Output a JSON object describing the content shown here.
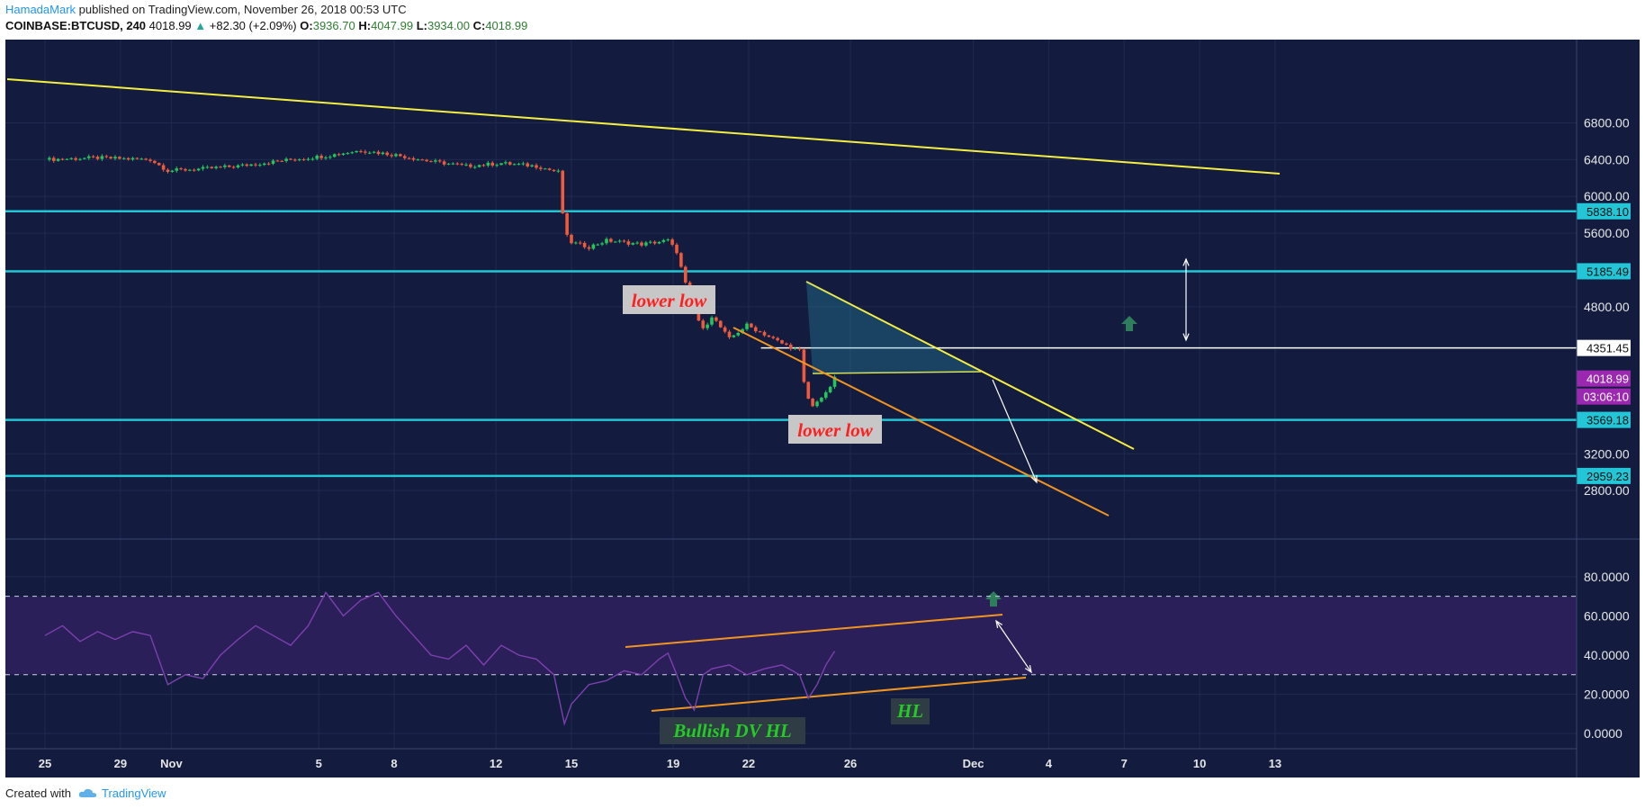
{
  "header": {
    "user": "HamadaMark",
    "published": "published on TradingView.com, November 26, 2018 00:53 UTC"
  },
  "ticker": {
    "symbol": "COINBASE:BTCUSD, 240",
    "last": "4018.99",
    "arrow": "▲",
    "change": "+82.30 (+2.09%)",
    "o_label": "O:",
    "o": "3936.70",
    "h_label": "H:",
    "h": "4047.99",
    "l_label": "L:",
    "l": "3934.00",
    "c_label": "C:",
    "c": "4018.99"
  },
  "footer": {
    "created_with": "Created with",
    "brand": "TradingView",
    "brand_icon": "cloud-logo-icon"
  },
  "colors": {
    "background": "#131c3f",
    "grid": "#1f2a52",
    "support": "#23c6d6",
    "trend_yellow": "#f5ef42",
    "trend_orange": "#f29420",
    "candle_up": "#22c55e",
    "candle_down": "#ef5a3c",
    "rsi_line": "#7e3fb0",
    "rsi_band": "#2a1f58",
    "price_badge": "#9c27b0",
    "annotation_red": "#ff1f1f",
    "annotation_green": "#22cc22"
  },
  "chart_data": [
    {
      "type": "candlestick",
      "symbol": "COINBASE:BTCUSD",
      "interval": "240",
      "x_ticks": [
        "25",
        "29",
        "Nov",
        "5",
        "8",
        "12",
        "15",
        "19",
        "22",
        "26",
        "Dec",
        "4",
        "7",
        "10",
        "13"
      ],
      "y_ticks": [
        "6800.00",
        "6400.00",
        "6000.00",
        "5600.00",
        "4800.00",
        "3200.00",
        "2800.00"
      ],
      "ylim": [
        2500,
        7300
      ],
      "horizontal_levels": [
        {
          "value": 5838.1,
          "label": "5838.10",
          "color": "support"
        },
        {
          "value": 5185.49,
          "label": "5185.49",
          "color": "support"
        },
        {
          "value": 4351.45,
          "label": "4351.45",
          "color": "white"
        },
        {
          "value": 3569.18,
          "label": "3569.18",
          "color": "support"
        },
        {
          "value": 2959.23,
          "label": "2959.23",
          "color": "support"
        }
      ],
      "last_price": {
        "value": 4018.99,
        "label": "4018.99",
        "countdown": "03:06:10"
      },
      "annotations": [
        "lower low",
        "lower low"
      ],
      "price_path": [
        {
          "d": 0,
          "p": 6400
        },
        {
          "d": 3,
          "p": 6420
        },
        {
          "d": 6,
          "p": 6400
        },
        {
          "d": 7,
          "p": 6280
        },
        {
          "d": 9,
          "p": 6300
        },
        {
          "d": 11,
          "p": 6330
        },
        {
          "d": 14,
          "p": 6400
        },
        {
          "d": 16,
          "p": 6440
        },
        {
          "d": 18,
          "p": 6500
        },
        {
          "d": 20,
          "p": 6450
        },
        {
          "d": 22,
          "p": 6380
        },
        {
          "d": 24,
          "p": 6330
        },
        {
          "d": 26,
          "p": 6360
        },
        {
          "d": 28,
          "p": 6330
        },
        {
          "d": 29.3,
          "p": 6260
        },
        {
          "d": 29.6,
          "p": 5600
        },
        {
          "d": 30,
          "p": 5500
        },
        {
          "d": 31,
          "p": 5450
        },
        {
          "d": 32,
          "p": 5520
        },
        {
          "d": 34,
          "p": 5480
        },
        {
          "d": 35.5,
          "p": 5520
        },
        {
          "d": 36,
          "p": 5400
        },
        {
          "d": 36.5,
          "p": 5050
        },
        {
          "d": 37,
          "p": 4750
        },
        {
          "d": 37.5,
          "p": 4550
        },
        {
          "d": 38,
          "p": 4700
        },
        {
          "d": 39,
          "p": 4450
        },
        {
          "d": 40,
          "p": 4600
        },
        {
          "d": 41,
          "p": 4500
        },
        {
          "d": 42,
          "p": 4400
        },
        {
          "d": 43,
          "p": 4320
        },
        {
          "d": 43.3,
          "p": 3900
        },
        {
          "d": 43.7,
          "p": 3700
        },
        {
          "d": 44,
          "p": 3780
        },
        {
          "d": 44.5,
          "p": 3850
        },
        {
          "d": 45,
          "p": 4019
        }
      ]
    },
    {
      "type": "line",
      "name": "RSI",
      "y_ticks": [
        "80.0000",
        "60.0000",
        "40.0000",
        "20.0000",
        "0.0000"
      ],
      "ylim": [
        -10,
        90
      ],
      "bands": [
        30,
        70
      ],
      "annotations": [
        "Bullish DV HL",
        "HL"
      ],
      "values": [
        {
          "d": 0,
          "v": 50
        },
        {
          "d": 1,
          "v": 55
        },
        {
          "d": 2,
          "v": 47
        },
        {
          "d": 3,
          "v": 52
        },
        {
          "d": 4,
          "v": 48
        },
        {
          "d": 5,
          "v": 52
        },
        {
          "d": 6,
          "v": 50
        },
        {
          "d": 7,
          "v": 25
        },
        {
          "d": 8,
          "v": 30
        },
        {
          "d": 9,
          "v": 28
        },
        {
          "d": 10,
          "v": 40
        },
        {
          "d": 11,
          "v": 48
        },
        {
          "d": 12,
          "v": 55
        },
        {
          "d": 13,
          "v": 50
        },
        {
          "d": 14,
          "v": 45
        },
        {
          "d": 15,
          "v": 55
        },
        {
          "d": 16,
          "v": 72
        },
        {
          "d": 17,
          "v": 60
        },
        {
          "d": 18,
          "v": 68
        },
        {
          "d": 19,
          "v": 72
        },
        {
          "d": 20,
          "v": 60
        },
        {
          "d": 21,
          "v": 50
        },
        {
          "d": 22,
          "v": 40
        },
        {
          "d": 23,
          "v": 38
        },
        {
          "d": 24,
          "v": 45
        },
        {
          "d": 25,
          "v": 35
        },
        {
          "d": 26,
          "v": 45
        },
        {
          "d": 27,
          "v": 40
        },
        {
          "d": 28,
          "v": 38
        },
        {
          "d": 29,
          "v": 30
        },
        {
          "d": 29.6,
          "v": 5
        },
        {
          "d": 30,
          "v": 15
        },
        {
          "d": 31,
          "v": 25
        },
        {
          "d": 32,
          "v": 27
        },
        {
          "d": 33,
          "v": 32
        },
        {
          "d": 34,
          "v": 30
        },
        {
          "d": 35,
          "v": 38
        },
        {
          "d": 35.5,
          "v": 41
        },
        {
          "d": 36,
          "v": 30
        },
        {
          "d": 36.5,
          "v": 18
        },
        {
          "d": 37,
          "v": 12
        },
        {
          "d": 37.5,
          "v": 30
        },
        {
          "d": 38,
          "v": 33
        },
        {
          "d": 39,
          "v": 35
        },
        {
          "d": 40,
          "v": 30
        },
        {
          "d": 41,
          "v": 33
        },
        {
          "d": 42,
          "v": 35
        },
        {
          "d": 43,
          "v": 30
        },
        {
          "d": 43.5,
          "v": 18
        },
        {
          "d": 44,
          "v": 25
        },
        {
          "d": 44.5,
          "v": 35
        },
        {
          "d": 45,
          "v": 42
        }
      ]
    }
  ]
}
